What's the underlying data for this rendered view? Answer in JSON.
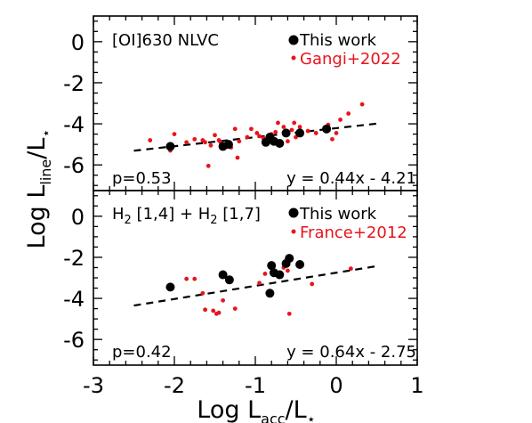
{
  "chart_data": {
    "type": "scatter",
    "xlabel": {
      "main": "Log L",
      "sub": "acc",
      "mid": "/L",
      "star": "⋆"
    },
    "ylabel": {
      "main": "Log L",
      "sub": "line",
      "mid": "/L",
      "star": "⋆"
    },
    "xlim": [
      -3,
      1
    ],
    "xticks": [
      "-3",
      "-2",
      "-1",
      "0",
      "1"
    ],
    "panels": [
      {
        "title": "[OI]630 NLVC",
        "ylim": [
          -7.25,
          1.25
        ],
        "yticks": [
          "0",
          "-2",
          "-4",
          "-6"
        ],
        "legend": [
          {
            "name": "This work",
            "color": "#000000"
          },
          {
            "name": "Gangi+2022",
            "color": "#e8141c"
          }
        ],
        "p_text": "p=0.53",
        "fit_text": "y = 0.44x - 4.21",
        "fit": {
          "slope": 0.44,
          "intercept": -4.21,
          "x_range": [
            -2.5,
            0.5
          ]
        },
        "series": [
          {
            "name": "This work",
            "color": "#000000",
            "points": [
              [
                -2.05,
                -5.1
              ],
              [
                -1.4,
                -5.1
              ],
              [
                -1.33,
                -5.0
              ],
              [
                -0.87,
                -4.9
              ],
              [
                -0.82,
                -4.65
              ],
              [
                -0.77,
                -4.85
              ],
              [
                -0.7,
                -4.95
              ],
              [
                -0.62,
                -4.45
              ],
              [
                -0.45,
                -4.45
              ],
              [
                -0.12,
                -4.25
              ]
            ]
          },
          {
            "name": "Gangi+2022",
            "color": "#e8141c",
            "points": [
              [
                -2.3,
                -4.8
              ],
              [
                -2.05,
                -5.3
              ],
              [
                -2.0,
                -4.5
              ],
              [
                -1.85,
                -4.9
              ],
              [
                -1.75,
                -4.75
              ],
              [
                -1.65,
                -4.8
              ],
              [
                -1.62,
                -4.9
              ],
              [
                -1.55,
                -5.05
              ],
              [
                -1.5,
                -4.55
              ],
              [
                -1.45,
                -4.8
              ],
              [
                -1.43,
                -4.9
              ],
              [
                -1.38,
                -5.0
              ],
              [
                -1.3,
                -5.15
              ],
              [
                -1.25,
                -4.25
              ],
              [
                -1.2,
                -4.85
              ],
              [
                -1.1,
                -4.65
              ],
              [
                -1.05,
                -4.25
              ],
              [
                -0.98,
                -4.45
              ],
              [
                -0.95,
                -4.6
              ],
              [
                -0.9,
                -4.7
              ],
              [
                -0.85,
                -4.8
              ],
              [
                -0.8,
                -4.5
              ],
              [
                -0.75,
                -4.4
              ],
              [
                -0.72,
                -3.95
              ],
              [
                -0.65,
                -4.15
              ],
              [
                -0.6,
                -4.85
              ],
              [
                -0.55,
                -4.3
              ],
              [
                -0.52,
                -3.95
              ],
              [
                -0.5,
                -4.65
              ],
              [
                -0.45,
                -4.15
              ],
              [
                -0.35,
                -4.35
              ],
              [
                -0.25,
                -4.45
              ],
              [
                -0.1,
                -4.05
              ],
              [
                -0.05,
                -4.75
              ],
              [
                0.0,
                -4.45
              ],
              [
                0.05,
                -3.8
              ],
              [
                0.15,
                -3.5
              ],
              [
                0.32,
                -3.05
              ],
              [
                -1.58,
                -6.05
              ],
              [
                -1.22,
                -5.65
              ]
            ]
          }
        ]
      },
      {
        "title": "H2 [1,4] + H2 [1,7]",
        "title_parts": [
          "H",
          "2",
          " [1,4] + H",
          "2",
          " [1,7]"
        ],
        "ylim": [
          -7.25,
          1.25
        ],
        "yticks": [
          "0",
          "-2",
          "-4",
          "-6"
        ],
        "legend": [
          {
            "name": "This work",
            "color": "#000000"
          },
          {
            "name": "France+2012",
            "color": "#e8141c"
          }
        ],
        "p_text": "p=0.42",
        "fit_text": "y = 0.64x - 2.75",
        "fit": {
          "slope": 0.64,
          "intercept": -2.75,
          "x_range": [
            -2.5,
            0.5
          ]
        },
        "series": [
          {
            "name": "This work",
            "color": "#000000",
            "points": [
              [
                -2.05,
                -3.45
              ],
              [
                -1.4,
                -2.85
              ],
              [
                -1.32,
                -3.1
              ],
              [
                -0.82,
                -3.75
              ],
              [
                -0.8,
                -2.4
              ],
              [
                -0.77,
                -2.75
              ],
              [
                -0.7,
                -2.85
              ],
              [
                -0.62,
                -2.3
              ],
              [
                -0.58,
                -2.05
              ],
              [
                -0.45,
                -2.35
              ]
            ]
          },
          {
            "name": "France+2012",
            "color": "#e8141c",
            "points": [
              [
                -1.85,
                -3.05
              ],
              [
                -1.75,
                -3.05
              ],
              [
                -1.65,
                -3.75
              ],
              [
                -1.62,
                -4.55
              ],
              [
                -1.52,
                -4.6
              ],
              [
                -1.48,
                -4.75
              ],
              [
                -1.45,
                -4.7
              ],
              [
                -1.4,
                -4.1
              ],
              [
                -1.25,
                -4.5
              ],
              [
                -0.95,
                -3.25
              ],
              [
                -0.88,
                -2.8
              ],
              [
                -0.65,
                -2.5
              ],
              [
                -0.6,
                -2.65
              ],
              [
                -0.58,
                -4.75
              ],
              [
                -0.3,
                -3.3
              ],
              [
                0.18,
                -2.55
              ]
            ]
          }
        ]
      }
    ]
  }
}
